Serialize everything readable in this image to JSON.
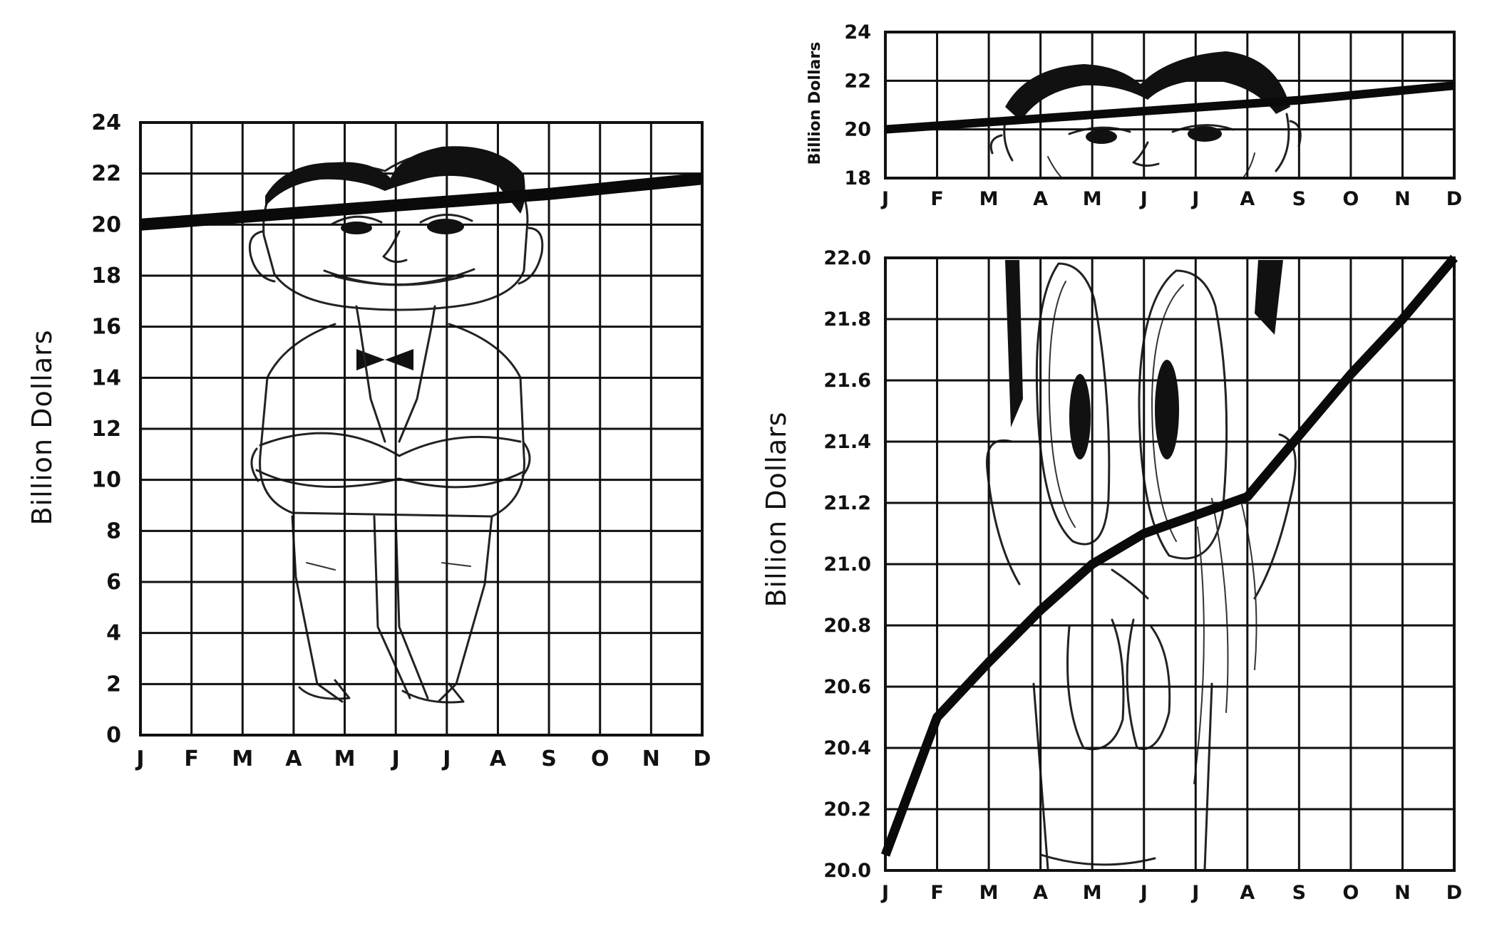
{
  "chart_data": [
    {
      "type": "line",
      "x": [
        "J",
        "F",
        "M",
        "A",
        "M",
        "J",
        "J",
        "A",
        "S",
        "O",
        "N",
        "D"
      ],
      "ylabel": "Billion Dollars",
      "xlabel": "",
      "title": "",
      "ylim": [
        0,
        24
      ],
      "yticks": [
        "0",
        "2",
        "4",
        "6",
        "8",
        "10",
        "12",
        "14",
        "16",
        "18",
        "20",
        "22",
        "24"
      ],
      "series": [
        {
          "values": [
            20.0,
            20.15,
            20.3,
            20.45,
            20.6,
            20.75,
            20.9,
            21.05,
            21.2,
            21.4,
            21.6,
            21.8
          ]
        }
      ],
      "grid": true,
      "illustration": "smiling-man-cartoon"
    },
    {
      "type": "line",
      "x": [
        "J",
        "F",
        "M",
        "A",
        "M",
        "J",
        "J",
        "A",
        "S",
        "O",
        "N",
        "D"
      ],
      "ylabel": "Billion Dollars",
      "xlabel": "",
      "title": "",
      "ylim": [
        18,
        24
      ],
      "yticks": [
        "18",
        "20",
        "22",
        "24"
      ],
      "series": [
        {
          "values": [
            20.0,
            20.15,
            20.3,
            20.45,
            20.6,
            20.75,
            20.9,
            21.05,
            21.2,
            21.4,
            21.6,
            21.8
          ]
        }
      ],
      "grid": true,
      "illustration": "smiling-man-face-cartoon"
    },
    {
      "type": "line",
      "x": [
        "J",
        "F",
        "M",
        "A",
        "M",
        "J",
        "J",
        "A",
        "S",
        "O",
        "N",
        "D"
      ],
      "ylabel": "Billion Dollars",
      "xlabel": "",
      "title": "",
      "ylim": [
        20.0,
        22.0
      ],
      "yticks": [
        "20.0",
        "20.2",
        "20.4",
        "20.6",
        "20.8",
        "21.0",
        "21.2",
        "21.4",
        "21.6",
        "21.8",
        "22.0"
      ],
      "series": [
        {
          "values": [
            20.05,
            20.5,
            20.68,
            20.85,
            21.0,
            21.1,
            21.16,
            21.22,
            21.42,
            21.62,
            21.8,
            22.0
          ]
        }
      ],
      "grid": true,
      "illustration": "astonished-face-cartoon"
    }
  ]
}
